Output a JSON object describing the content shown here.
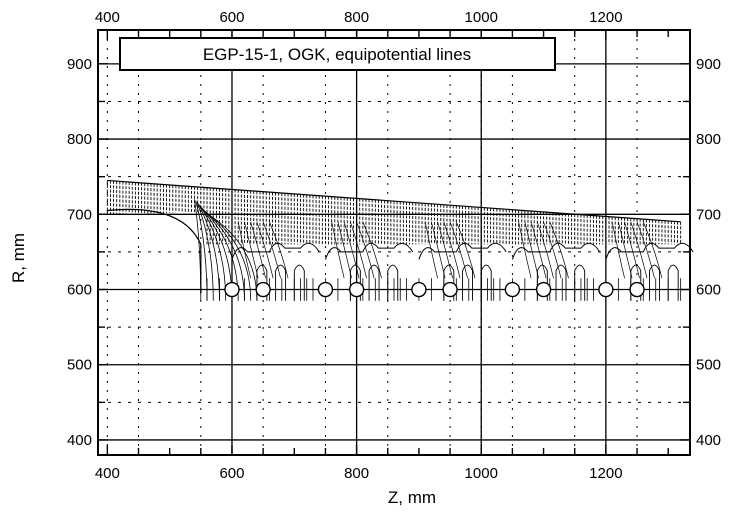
{
  "chart_data": {
    "type": "line",
    "title": "EGP-15-1, OGK, equipotential lines",
    "xlabel": "Z, mm",
    "ylabel": "R, mm",
    "xlim": [
      385,
      1335
    ],
    "ylim": [
      380,
      945
    ],
    "x_ticks": [
      400,
      600,
      800,
      1000,
      1200
    ],
    "y_ticks": [
      400,
      500,
      600,
      700,
      800,
      900
    ],
    "x_minor_step": 50,
    "y_minor_step": 50,
    "grid": "dashed-dotted",
    "right_axis_labels": true,
    "top_axis_labels": true,
    "electrode_rings": [
      {
        "z": 600,
        "r": 600
      },
      {
        "z": 650,
        "r": 600
      },
      {
        "z": 750,
        "r": 600
      },
      {
        "z": 800,
        "r": 600
      },
      {
        "z": 900,
        "r": 600
      },
      {
        "z": 950,
        "r": 600
      },
      {
        "z": 1050,
        "r": 600
      },
      {
        "z": 1100,
        "r": 600
      },
      {
        "z": 1200,
        "r": 600
      },
      {
        "z": 1250,
        "r": 600
      }
    ],
    "cell_boundaries_z": [
      600,
      750,
      900,
      1050,
      1200
    ],
    "beam_envelope": {
      "z_start": 400,
      "z_end": 1320,
      "r_top_start": 745,
      "r_top_end": 690
    }
  }
}
